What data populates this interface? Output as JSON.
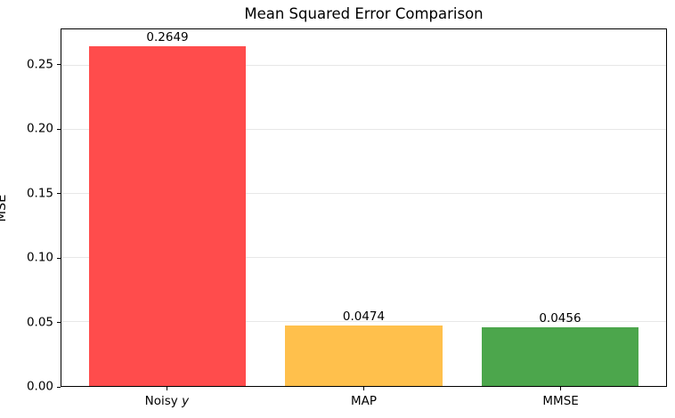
{
  "chart_data": {
    "type": "bar",
    "title": "Mean Squared Error Comparison",
    "xlabel": "",
    "ylabel": "MSE",
    "categories": [
      "Noisy y",
      "MAP",
      "MMSE"
    ],
    "x_ticks": [
      {
        "text": "Noisy ",
        "italic_suffix": "y"
      },
      {
        "text": "MAP",
        "italic_suffix": ""
      },
      {
        "text": "MMSE",
        "italic_suffix": ""
      }
    ],
    "values": [
      0.2649,
      0.0474,
      0.0456
    ],
    "value_labels": [
      "0.2649",
      "0.0474",
      "0.0456"
    ],
    "bar_colors": [
      "#ff4c4c",
      "#ffc04c",
      "#4ca64c"
    ],
    "ylim": [
      0,
      0.2781
    ],
    "ytick_values": [
      0.0,
      0.05,
      0.1,
      0.15,
      0.2,
      0.25
    ],
    "ytick_labels": [
      "0.00",
      "0.05",
      "0.10",
      "0.15",
      "0.20",
      "0.25"
    ],
    "grid": true,
    "legend": "none",
    "colors": {
      "grid": "#e7e7e7",
      "spine": "#000000",
      "text": "#000000",
      "background": "#ffffff"
    },
    "layout": {
      "x_positions_pct": [
        17.53,
        50,
        82.47
      ],
      "bar_width_pct": 25.97
    }
  }
}
